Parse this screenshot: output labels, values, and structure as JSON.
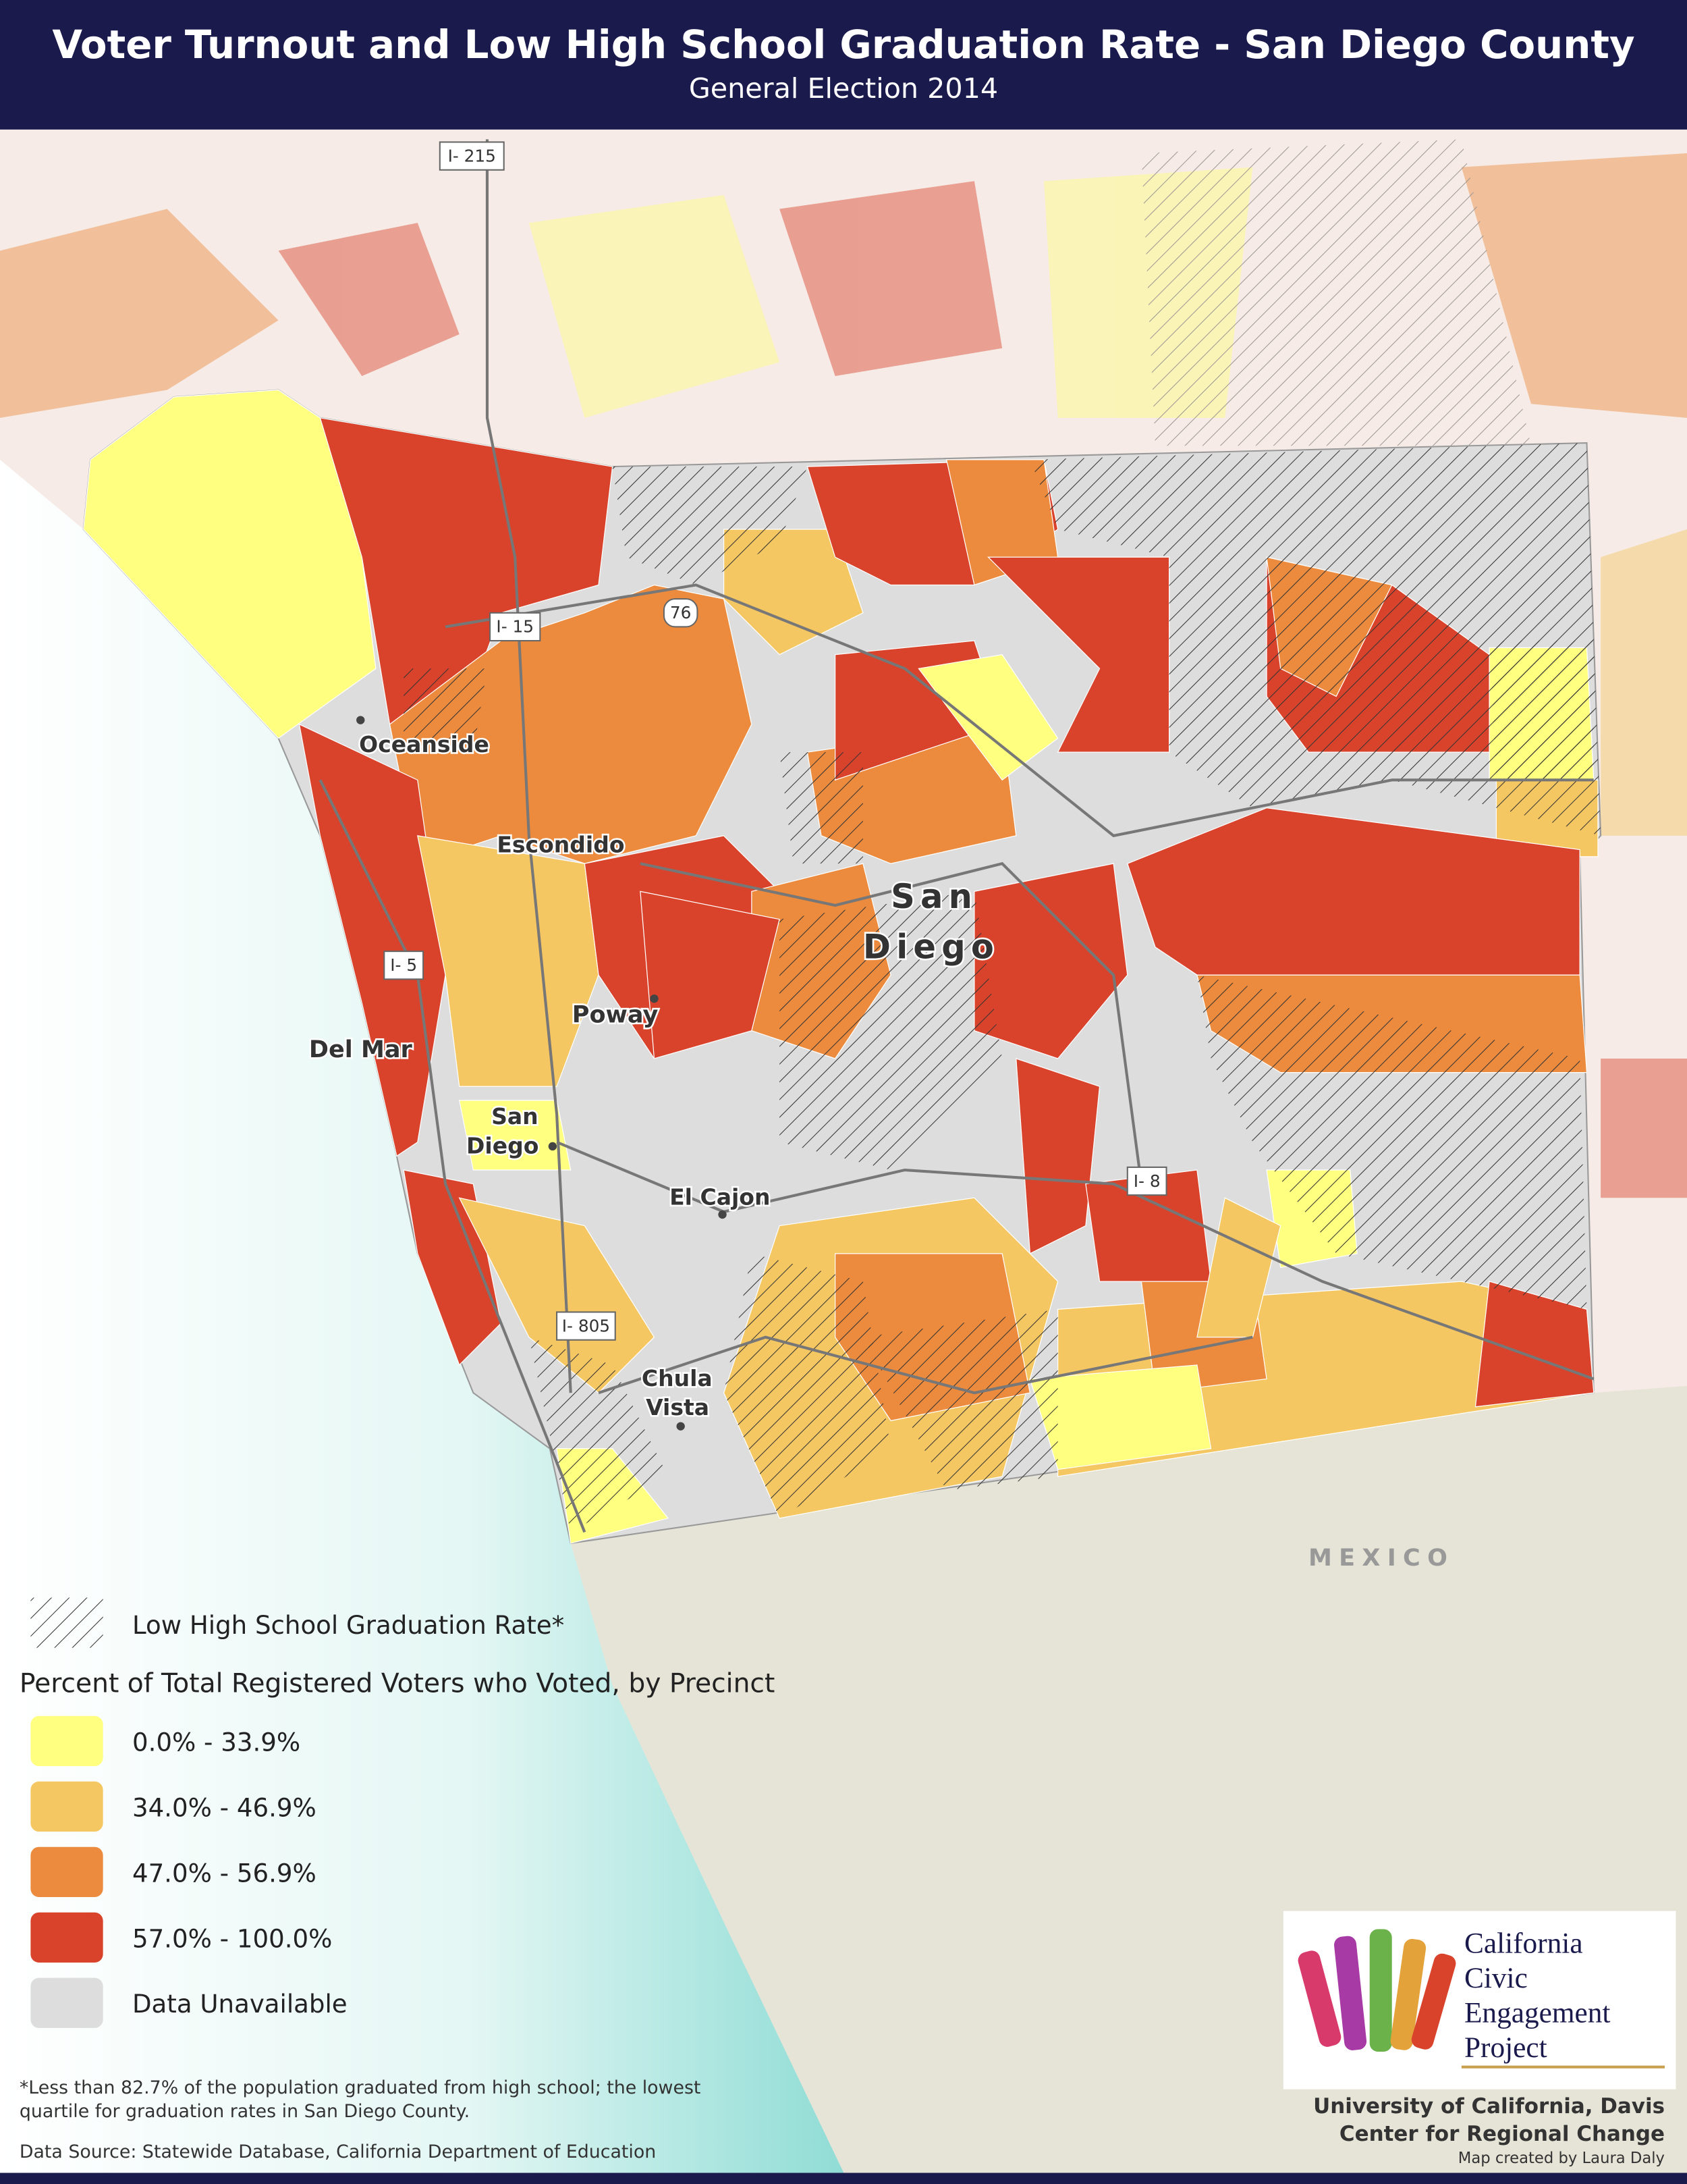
{
  "header": {
    "title": "Voter Turnout and Low High School Graduation Rate - San Diego County",
    "subtitle": "General Election 2014"
  },
  "map": {
    "region_label": [
      "San",
      "Diego"
    ],
    "places": {
      "oceanside": "Oceanside",
      "escondido": "Escondido",
      "del_mar": "Del Mar",
      "poway": "Poway",
      "san_diego": [
        "San",
        "Diego"
      ],
      "el_cajon": "El Cajon",
      "chula_vista": [
        "Chula",
        "Vista"
      ]
    },
    "highways": [
      "I- 215",
      "I- 15",
      "76",
      "I- 5",
      "I- 805",
      "I- 8"
    ],
    "country": "MEXICO"
  },
  "legend": {
    "hatch_label": "Low High School Graduation Rate*",
    "title": "Percent of Total Registered Voters who Voted, by Precinct",
    "items": [
      {
        "label": "0.0% - 33.9%",
        "color": "#ffff80"
      },
      {
        "label": "34.0% - 46.9%",
        "color": "#f5c763"
      },
      {
        "label": "47.0% - 56.9%",
        "color": "#ec8b3d"
      },
      {
        "label": "57.0% - 100.0%",
        "color": "#d9432b"
      },
      {
        "label": "Data Unavailable",
        "color": "#dddddd"
      }
    ]
  },
  "notes": {
    "footnote": [
      "*Less than 82.7% of the population graduated from high school; the lowest",
      "quartile for graduation rates in San Diego County."
    ],
    "source": "Data Source: Statewide Database, California Department of Education"
  },
  "logo": [
    "California",
    "Civic",
    "Engagement",
    "Project"
  ],
  "credits": [
    "University of California, Davis",
    "Center for Regional Change",
    "Map created by Laura Daly"
  ]
}
